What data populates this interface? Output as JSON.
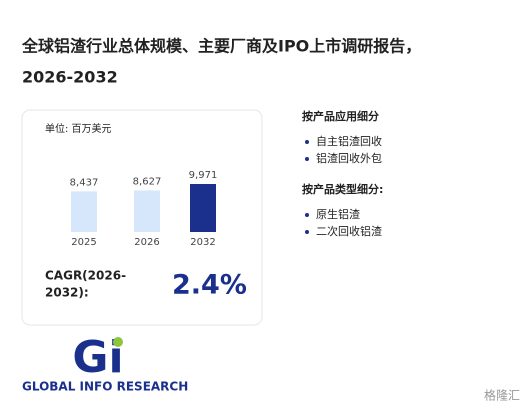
{
  "title": [
    "全球铝渣行业总体规模、主要厂商及IPO上市调研报告，",
    "2026-2032"
  ],
  "chart_data": {
    "type": "bar",
    "unit": "单位: 百万美元",
    "categories": [
      "2025",
      "2026",
      "2032"
    ],
    "values": [
      8437,
      8627,
      9971
    ],
    "value_labels": [
      "8,437",
      "8,627",
      "9,971"
    ],
    "colors": [
      "#d6e7fb",
      "#d6e7fb",
      "#1b2f8c"
    ]
  },
  "cagr": {
    "label": [
      "CAGR(2026-",
      "2032):"
    ],
    "value": "2.4%"
  },
  "segments": [
    {
      "heading": "按产品应用细分",
      "items": [
        "自主铝渣回收",
        "铝渣回收外包"
      ]
    },
    {
      "heading": "按产品类型细分:",
      "items": [
        "原生铝渣",
        "二次回收铝渣"
      ]
    }
  ],
  "logo": {
    "mark": "Gi",
    "text": "GLOBAL INFO RESEARCH"
  },
  "watermark": "格隆汇"
}
